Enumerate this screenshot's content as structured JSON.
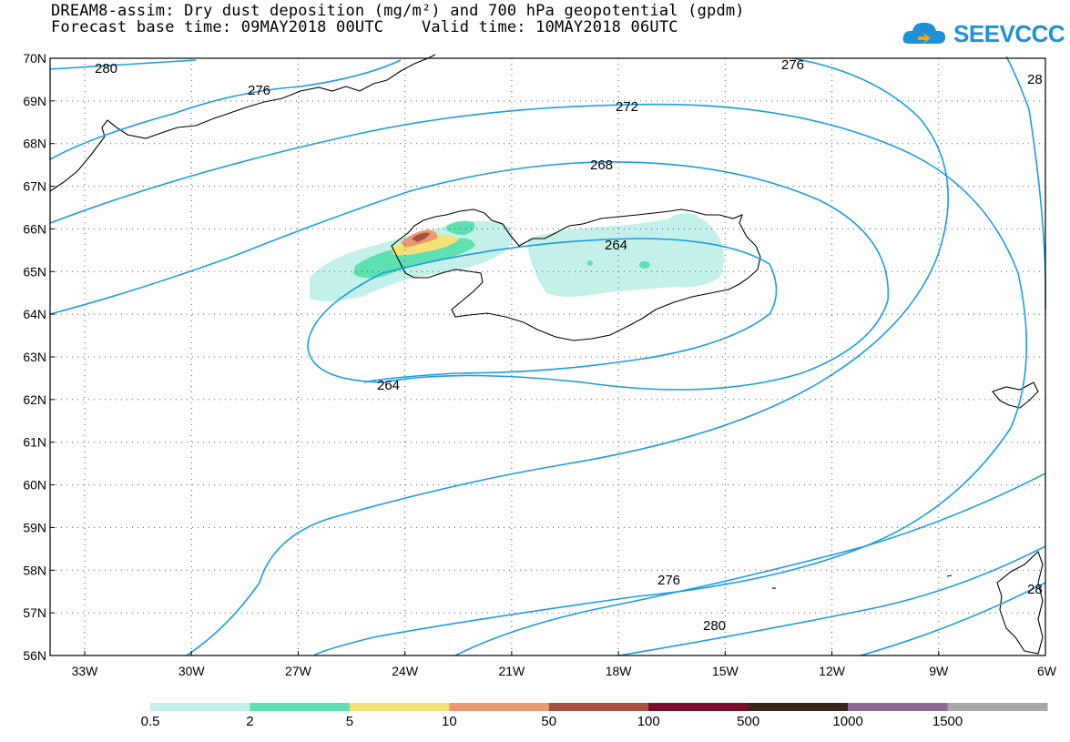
{
  "title": {
    "line1": "DREAM8-assim: Dry dust deposition (mg/m²) and 700 hPa geopotential (gpdm)",
    "line2": "Forecast base time: 09MAY2018 00UTC    Valid time: 10MAY2018 06UTC"
  },
  "logo": {
    "text": "SEEVCCC"
  },
  "map": {
    "lat_labels": [
      "70N",
      "69N",
      "68N",
      "67N",
      "66N",
      "65N",
      "64N",
      "63N",
      "62N",
      "61N",
      "60N",
      "59N",
      "58N",
      "57N",
      "56N"
    ],
    "lon_labels": [
      "33W",
      "30W",
      "27W",
      "24W",
      "21W",
      "18W",
      "15W",
      "12W",
      "9W",
      "6W"
    ],
    "contour_labels": [
      "280",
      "276",
      "272",
      "268",
      "264",
      "264",
      "276",
      "280",
      "276",
      "28",
      "28"
    ],
    "field": "Dry dust deposition",
    "contour_field": "700 hPa geopotential",
    "colors": {
      "contour": "#1e9be0",
      "coastline": "#000000"
    }
  },
  "legend": {
    "labels": [
      "0.5",
      "2",
      "5",
      "10",
      "50",
      "100",
      "500",
      "1000",
      "1500"
    ],
    "colors": [
      "#c3f0e8",
      "#5ee0b0",
      "#f2e278",
      "#eb9a70",
      "#a84f42",
      "#7c0b2d",
      "#3a271c",
      "#8e6a98",
      "#a8a8a8"
    ]
  }
}
